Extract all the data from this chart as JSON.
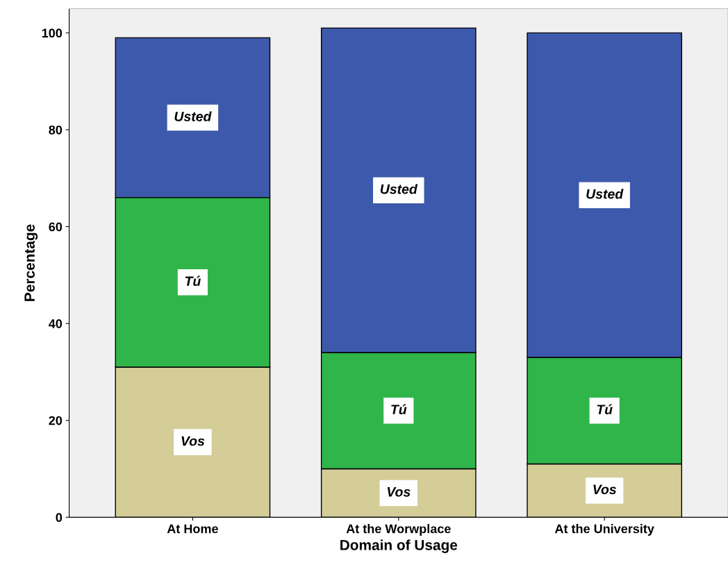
{
  "chart_data": {
    "type": "bar",
    "xlabel": "Domain of Usage",
    "ylabel": "Percentage",
    "categories": [
      "At Home",
      "At the Worwplace",
      "At the University"
    ],
    "stacked": true,
    "series": [
      {
        "name": "Vos",
        "color": "#d4cd98",
        "values": [
          31,
          10,
          11
        ]
      },
      {
        "name": "Tú",
        "color": "#30b54a",
        "values": [
          35,
          24,
          22
        ]
      },
      {
        "name": "Usted",
        "color": "#3d59ab",
        "values": [
          33,
          67,
          67
        ]
      }
    ],
    "ylim": [
      0,
      105
    ],
    "yticks": [
      0,
      20,
      40,
      60,
      80,
      100
    ],
    "grid": false,
    "legend": false
  }
}
